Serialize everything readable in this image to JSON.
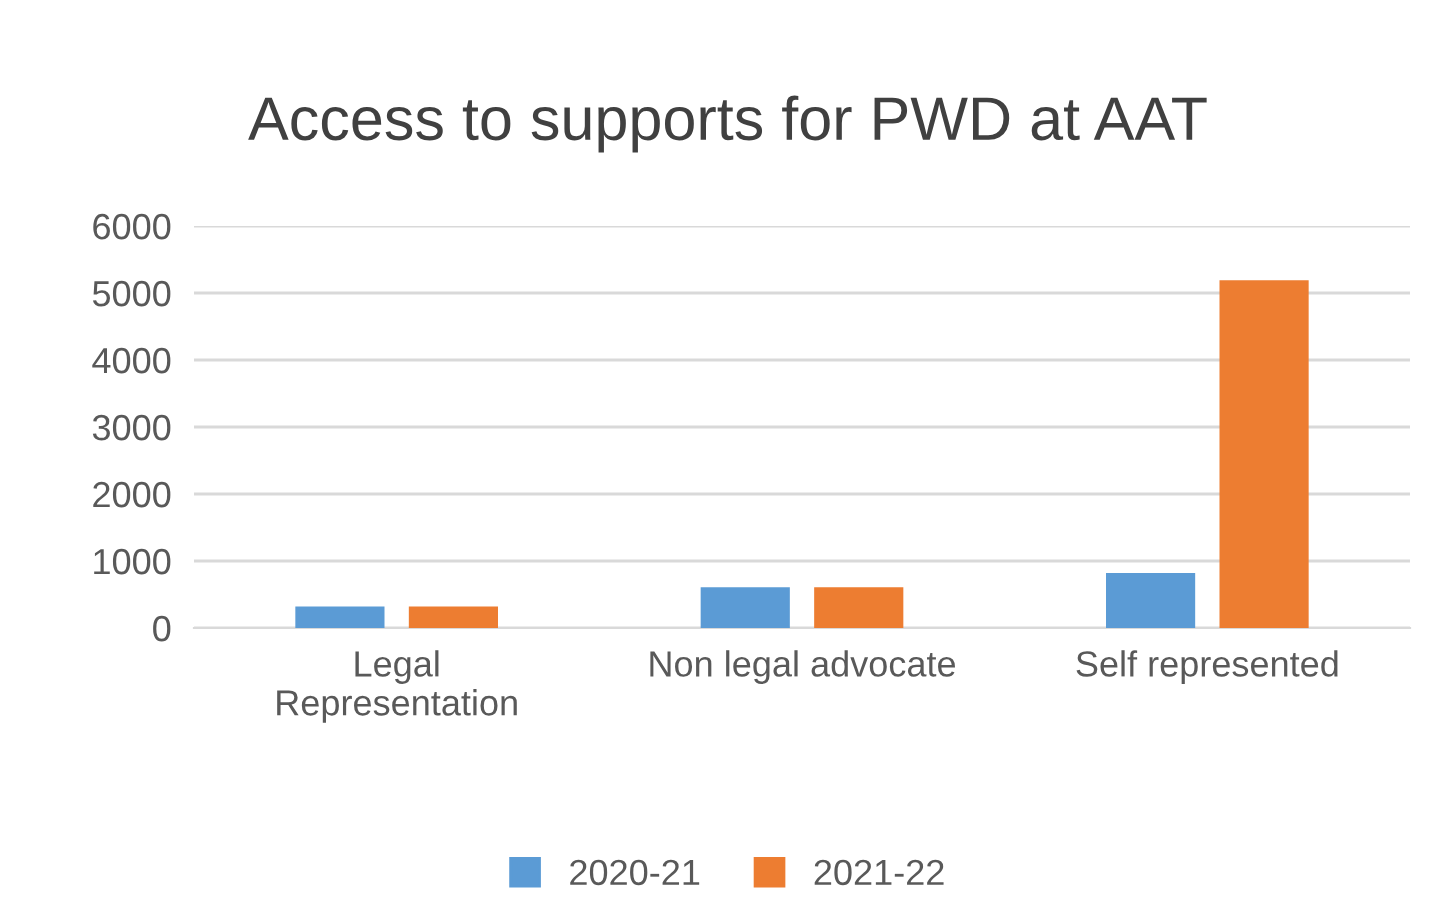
{
  "chart_data": {
    "type": "bar",
    "title": "Access to supports for PWD at AAT",
    "categories": [
      "Legal\nRepresentation",
      "Non legal advocate",
      "Self represented"
    ],
    "series": [
      {
        "name": "2020-21",
        "color": "#5b9bd5",
        "values": [
          320,
          610,
          820
        ]
      },
      {
        "name": "2021-22",
        "color": "#ed7d31",
        "values": [
          320,
          610,
          5190
        ]
      }
    ],
    "ylim": [
      0,
      6000
    ],
    "yticks": [
      0,
      1000,
      2000,
      3000,
      4000,
      5000,
      6000
    ],
    "grid": "y",
    "legend": "bottom"
  }
}
